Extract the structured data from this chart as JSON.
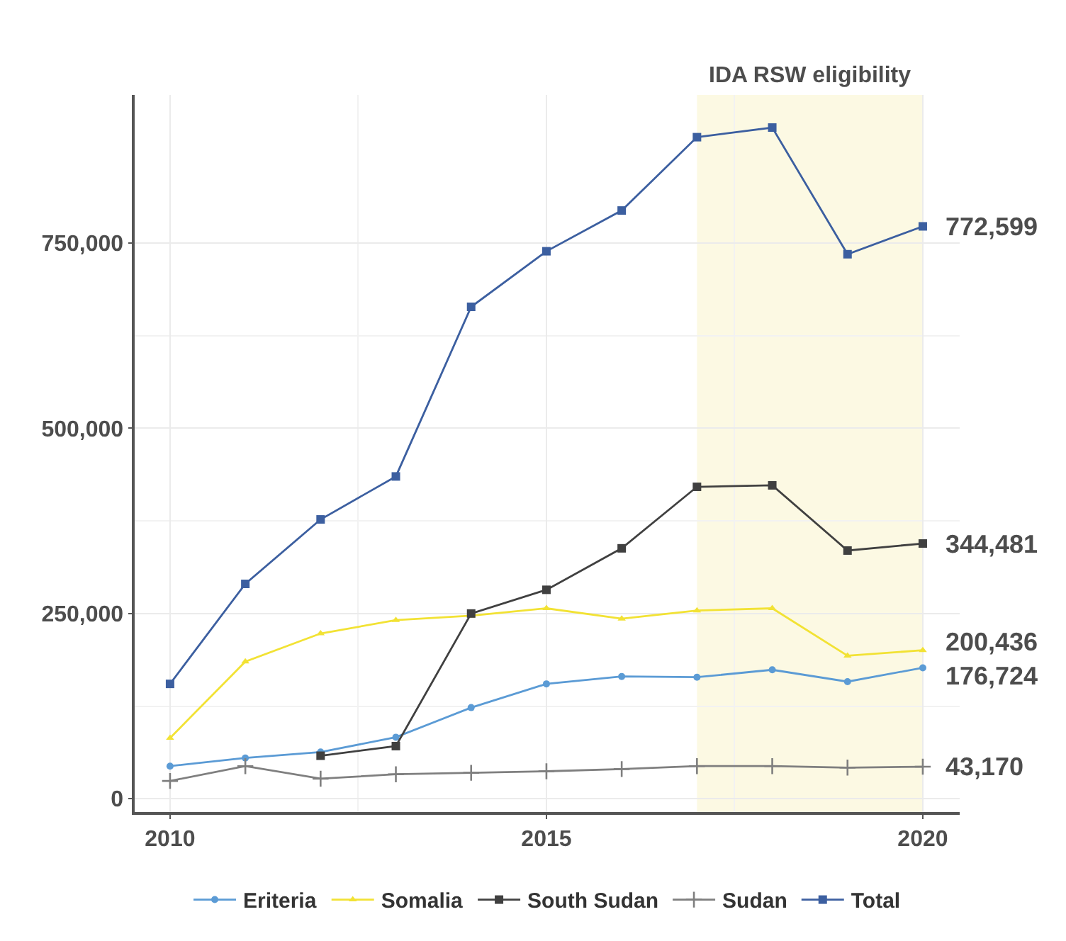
{
  "chart_data": {
    "type": "line",
    "x": [
      2010,
      2011,
      2012,
      2013,
      2014,
      2015,
      2016,
      2017,
      2018,
      2019,
      2020
    ],
    "series": [
      {
        "name": "Eriteria",
        "color": "#5b9bd5",
        "marker": "circle",
        "values": [
          44000,
          55000,
          63000,
          83000,
          123000,
          155000,
          165000,
          164000,
          174000,
          158000,
          176724
        ],
        "value_labels": [
          null,
          null,
          null,
          null,
          null,
          null,
          null,
          null,
          null,
          null,
          "176,724"
        ]
      },
      {
        "name": "Somalia",
        "color": "#f2e234",
        "marker": "triangle",
        "values": [
          82000,
          185000,
          223000,
          241000,
          247000,
          257000,
          243000,
          254000,
          257000,
          193000,
          200436
        ],
        "value_labels": [
          null,
          null,
          null,
          null,
          null,
          null,
          null,
          null,
          null,
          null,
          "200,436"
        ]
      },
      {
        "name": "South Sudan",
        "color": "#404040",
        "marker": "square",
        "values": [
          null,
          null,
          58000,
          71000,
          250000,
          282000,
          338000,
          421000,
          423000,
          335000,
          344481
        ],
        "value_labels": [
          null,
          null,
          null,
          null,
          null,
          null,
          null,
          null,
          null,
          null,
          "344,481"
        ]
      },
      {
        "name": "Sudan",
        "color": "#7f7f7f",
        "marker": "cross",
        "values": [
          24000,
          44000,
          27000,
          33000,
          35000,
          37000,
          40000,
          44000,
          44000,
          42000,
          43170
        ],
        "value_labels": [
          null,
          null,
          null,
          null,
          null,
          null,
          null,
          null,
          null,
          null,
          "43,170"
        ]
      },
      {
        "name": "Total",
        "color": "#3c5fa0",
        "marker": "square",
        "values": [
          155000,
          290000,
          377000,
          435000,
          664000,
          739000,
          794000,
          893000,
          906000,
          735000,
          772599
        ],
        "value_labels": [
          null,
          null,
          null,
          null,
          null,
          null,
          null,
          null,
          null,
          null,
          "772,599"
        ]
      }
    ],
    "xlim": [
      2009.53,
      2020.49
    ],
    "xticks": [
      2010,
      2015,
      2020
    ],
    "ylim": [
      -18000,
      950000
    ],
    "yticks": [
      {
        "value": 0,
        "label": "0"
      },
      {
        "value": 250000,
        "label": "250,000"
      },
      {
        "value": 500000,
        "label": "500,000"
      },
      {
        "value": 750000,
        "label": "750,000"
      }
    ],
    "bands": [
      {
        "axis": "x",
        "from": 2017,
        "to": 2020,
        "label": "IDA RSW eligibility",
        "color": "#fcf9e3"
      }
    ],
    "grid": true,
    "legend": "bottom",
    "line_style": "solid"
  }
}
